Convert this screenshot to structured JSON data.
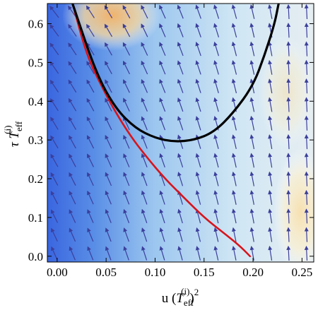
{
  "chart_data": {
    "type": "stream/vector field with curves",
    "xlabel": "u (T_eff^(i))^2",
    "ylabel": "τ T_eff^(i)",
    "xlim": [
      -0.01,
      0.262
    ],
    "ylim": [
      -0.015,
      0.652
    ],
    "x_ticks": [
      0.0,
      0.05,
      0.1,
      0.15,
      0.2,
      0.25
    ],
    "x_tick_labels": [
      "0.00",
      "0.05",
      "0.10",
      "0.15",
      "0.20",
      "0.25"
    ],
    "y_ticks": [
      0.0,
      0.1,
      0.2,
      0.3,
      0.4,
      0.5,
      0.6
    ],
    "y_tick_labels": [
      "0.0",
      "0.1",
      "0.2",
      "0.3",
      "0.4",
      "0.5",
      "0.6"
    ],
    "colors": {
      "arrow": "#3b3f9c",
      "red_curve": "#d8141b",
      "black_curve": "#000000",
      "background_low": "#3a66e0",
      "background_mid": "#b9dcf2",
      "background_high": "#f0b26a"
    },
    "series": [
      {
        "color": "red",
        "points": [
          [
            0.016,
            0.65
          ],
          [
            0.03,
            0.52
          ],
          [
            0.045,
            0.44
          ],
          [
            0.06,
            0.37
          ],
          [
            0.075,
            0.31
          ],
          [
            0.09,
            0.26
          ],
          [
            0.11,
            0.2
          ],
          [
            0.13,
            0.15
          ],
          [
            0.15,
            0.1
          ],
          [
            0.17,
            0.06
          ],
          [
            0.185,
            0.03
          ],
          [
            0.197,
            0.0
          ]
        ]
      },
      {
        "color": "black",
        "points": [
          [
            0.016,
            0.65
          ],
          [
            0.04,
            0.47
          ],
          [
            0.06,
            0.38
          ],
          [
            0.08,
            0.33
          ],
          [
            0.1,
            0.305
          ],
          [
            0.12,
            0.295
          ],
          [
            0.14,
            0.3
          ],
          [
            0.16,
            0.32
          ],
          [
            0.18,
            0.37
          ],
          [
            0.2,
            0.44
          ],
          [
            0.212,
            0.52
          ],
          [
            0.222,
            0.6
          ],
          [
            0.226,
            0.65
          ]
        ]
      }
    ],
    "background_hotspots": [
      {
        "x": 0.065,
        "y": 0.64,
        "level": "high"
      },
      {
        "x": 0.255,
        "y": 0.05,
        "level": "high"
      },
      {
        "x": 0.235,
        "y": 0.2,
        "level": "medium"
      }
    ]
  }
}
